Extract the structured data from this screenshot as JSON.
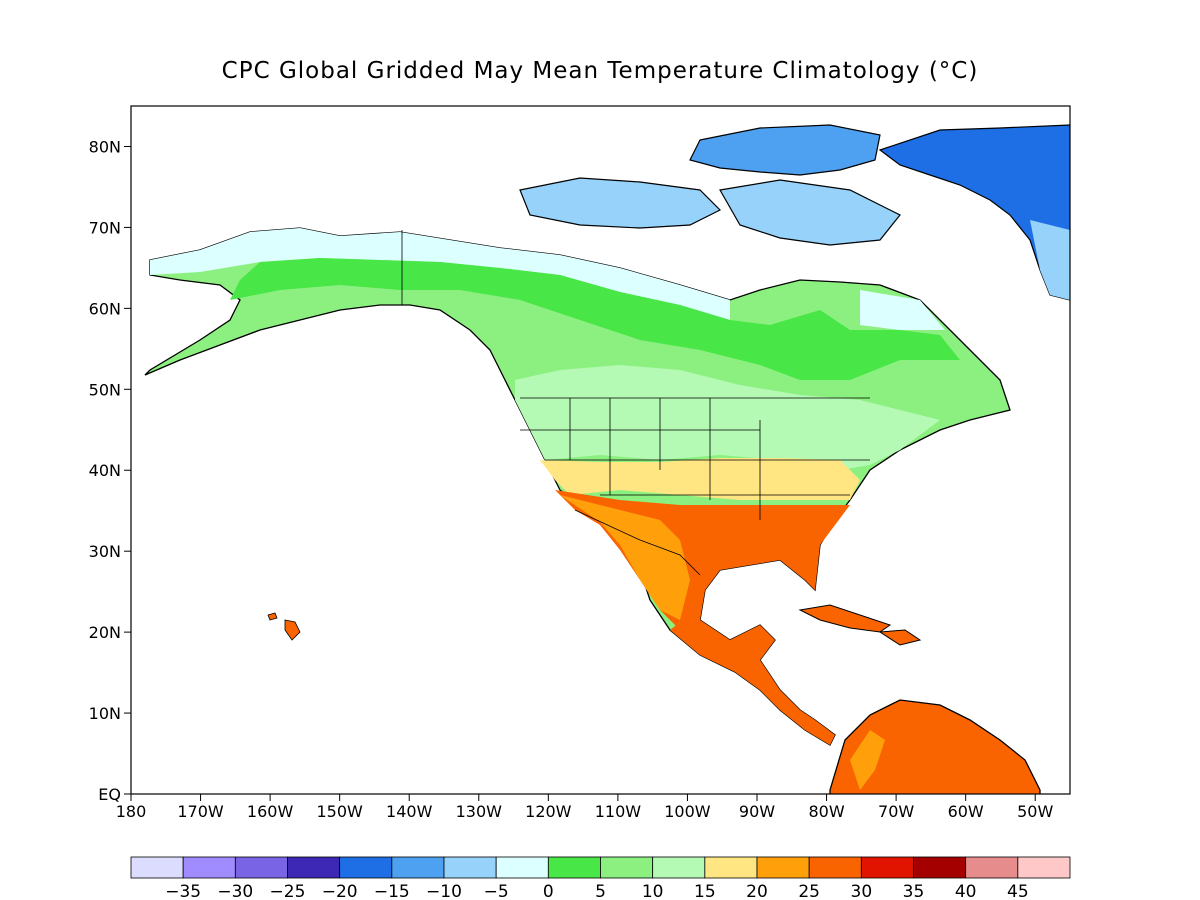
{
  "title": "CPC Global Gridded May Mean Temperature Climatology (°C)",
  "map": {
    "projection": "equirectangular",
    "lon_range": [
      -180,
      -45
    ],
    "lat_range": [
      0,
      85
    ],
    "lat_ticks": [
      {
        "value": 0,
        "label": "EQ"
      },
      {
        "value": 10,
        "label": "10N"
      },
      {
        "value": 20,
        "label": "20N"
      },
      {
        "value": 30,
        "label": "30N"
      },
      {
        "value": 40,
        "label": "40N"
      },
      {
        "value": 50,
        "label": "50N"
      },
      {
        "value": 60,
        "label": "60N"
      },
      {
        "value": 70,
        "label": "70N"
      },
      {
        "value": 80,
        "label": "80N"
      }
    ],
    "lon_ticks": [
      {
        "value": -180,
        "label": "180"
      },
      {
        "value": -170,
        "label": "170W"
      },
      {
        "value": -160,
        "label": "160W"
      },
      {
        "value": -150,
        "label": "150W"
      },
      {
        "value": -140,
        "label": "140W"
      },
      {
        "value": -130,
        "label": "130W"
      },
      {
        "value": -120,
        "label": "120W"
      },
      {
        "value": -110,
        "label": "110W"
      },
      {
        "value": -100,
        "label": "100W"
      },
      {
        "value": -90,
        "label": "90W"
      },
      {
        "value": -80,
        "label": "80W"
      },
      {
        "value": -70,
        "label": "70W"
      },
      {
        "value": -60,
        "label": "60W"
      },
      {
        "value": -50,
        "label": "50W"
      }
    ]
  },
  "colorbar": {
    "colors": [
      "#dcdcff",
      "#a08cff",
      "#7a64e6",
      "#3c28b4",
      "#1e6ee6",
      "#4ea0f0",
      "#96d2fa",
      "#dcffff",
      "#48e646",
      "#8cf080",
      "#b4fab4",
      "#ffe682",
      "#ffa00a",
      "#fa6400",
      "#e11400",
      "#a50000",
      "#e68c8c",
      "#ffc8c8"
    ],
    "labels": [
      "−35",
      "−30",
      "−25",
      "−20",
      "−15",
      "−10",
      "−5",
      "0",
      "5",
      "10",
      "15",
      "20",
      "25",
      "30",
      "35",
      "40",
      "45"
    ]
  }
}
